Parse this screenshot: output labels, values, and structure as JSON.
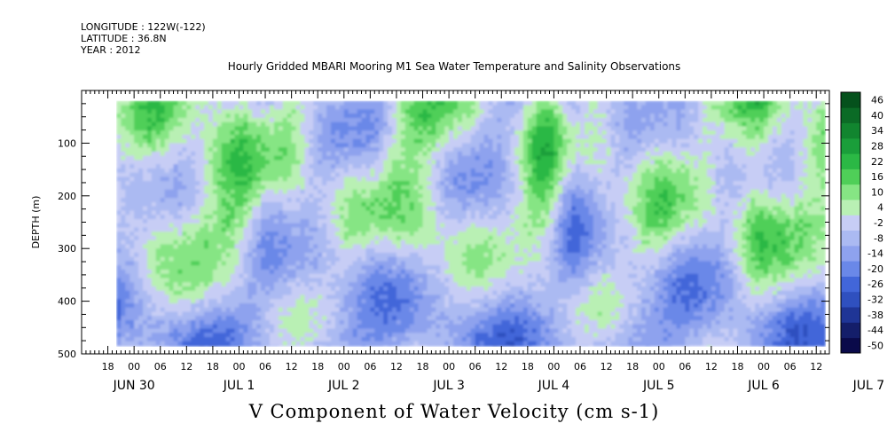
{
  "header": {
    "longitude": "LONGITUDE : 122W(-122)",
    "latitude": "LATITUDE : 36.8N",
    "year": "YEAR : 2012"
  },
  "chart_data": {
    "type": "heatmap",
    "title": "Hourly Gridded MBARI Mooring M1 Sea Water Temperature and Salinity Observations",
    "caption": "V Component of Water Velocity (cm s-1)",
    "xlabel": "",
    "ylabel": "DEPTH (m)",
    "x_start": "2012-06-30T12:00",
    "x_end": "2012-07-07T15:00",
    "data_x_range": [
      "2012-06-30T20:00",
      "2012-07-07T14:00"
    ],
    "ylim": [
      500,
      0
    ],
    "data_depth_range": [
      20,
      485
    ],
    "y_ticks": [
      100,
      200,
      300,
      400,
      500
    ],
    "y_tick_labels": [
      "100",
      "200",
      "300",
      "400",
      "500"
    ],
    "x_hour_labels": [
      "18",
      "00",
      "06",
      "12",
      "18",
      "00",
      "06",
      "12",
      "18",
      "00",
      "06",
      "12",
      "18",
      "00",
      "06",
      "12",
      "18",
      "00",
      "06",
      "12",
      "18",
      "00",
      "06",
      "12",
      "18",
      "00",
      "06",
      "12"
    ],
    "x_day_labels": [
      "JUN 30",
      "JUL  1",
      "JUL  2",
      "JUL  3",
      "JUL  4",
      "JUL  5",
      "JUL  6",
      "JUL  7"
    ],
    "colorbar": {
      "levels": [
        -50,
        -44,
        -38,
        -32,
        -26,
        -20,
        -14,
        -8,
        -2,
        4,
        10,
        16,
        22,
        28,
        34,
        40,
        46
      ],
      "labels": [
        "-50",
        "-44",
        "-38",
        "-32",
        "-26",
        "-20",
        "-14",
        "-8",
        "-2",
        "4",
        "10",
        "16",
        "22",
        "28",
        "34",
        "40",
        "46"
      ],
      "colors": [
        "#0a0a4a",
        "#141e6a",
        "#1f3596",
        "#2f50bf",
        "#4266d9",
        "#6a88e8",
        "#8ea2ee",
        "#abbaf2",
        "#c7cdf5",
        "#b9f0b4",
        "#86e584",
        "#4fcf58",
        "#2bb845",
        "#1a9e3a",
        "#11852f",
        "#0b6b26",
        "#05511c"
      ]
    }
  }
}
